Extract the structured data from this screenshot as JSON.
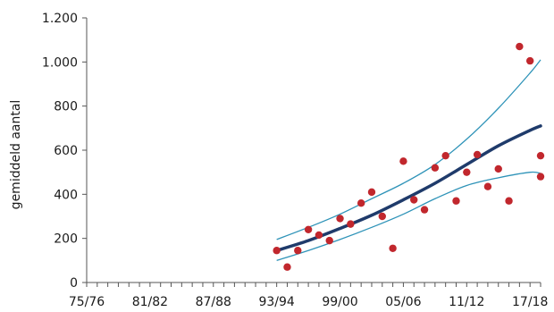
{
  "chart_data": {
    "type": "scatter",
    "ylabel": "gemiddeld aantal",
    "xlabel": "",
    "title": "",
    "ylim": [
      0,
      1200
    ],
    "yticks": [
      0,
      200,
      400,
      600,
      800,
      1000,
      1200
    ],
    "ytick_labels": [
      "0",
      "200",
      "400",
      "600",
      "800",
      "1.000",
      "1.200"
    ],
    "x_season_start_range": [
      1975,
      2018
    ],
    "xtick_labels": [
      "75/76",
      "81/82",
      "87/88",
      "93/94",
      "99/00",
      "05/06",
      "11/12",
      "17/18"
    ],
    "xticks": [
      1975,
      1981,
      1987,
      1993,
      1999,
      2005,
      2011,
      2017
    ],
    "grid": false,
    "colors": {
      "points": "#c1272d",
      "trend": "#1f3b6b",
      "ci": "#2e93b8",
      "axis": "#555555"
    },
    "series": [
      {
        "role": "observations",
        "style": "points",
        "x": [
          1993,
          1994,
          1995,
          1996,
          1997,
          1998,
          1999,
          2000,
          2001,
          2002,
          2003,
          2004,
          2005,
          2006,
          2007,
          2008,
          2009,
          2010,
          2011,
          2012,
          2013,
          2014,
          2015,
          2016,
          2017,
          2018
        ],
        "y": [
          145,
          70,
          145,
          240,
          215,
          190,
          290,
          265,
          360,
          410,
          300,
          155,
          550,
          375,
          330,
          520,
          575,
          370,
          500,
          580,
          435,
          515,
          370,
          1070,
          1005,
          575
        ],
        "x_extra": [
          2018
        ],
        "y_extra": [
          480
        ]
      },
      {
        "role": "trend",
        "style": "line",
        "x": [
          1993,
          1996,
          1999,
          2002,
          2005,
          2008,
          2011,
          2014,
          2017,
          2018
        ],
        "y": [
          145,
          190,
          245,
          305,
          375,
          450,
          535,
          620,
          690,
          710
        ]
      },
      {
        "role": "ci-upper",
        "style": "line",
        "x": [
          1993,
          1996,
          1999,
          2002,
          2005,
          2008,
          2011,
          2014,
          2017,
          2018
        ],
        "y": [
          195,
          250,
          310,
          380,
          450,
          535,
          650,
          790,
          950,
          1010
        ]
      },
      {
        "role": "ci-lower",
        "style": "line",
        "x": [
          1993,
          1996,
          1999,
          2002,
          2005,
          2008,
          2011,
          2014,
          2017,
          2018
        ],
        "y": [
          100,
          145,
          195,
          250,
          310,
          380,
          440,
          475,
          500,
          495
        ]
      }
    ]
  }
}
